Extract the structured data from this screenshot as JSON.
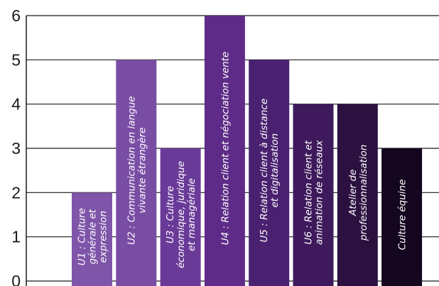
{
  "chart_data": {
    "type": "bar",
    "categories": [
      [
        "U1 : Culture",
        "générale et",
        "expression"
      ],
      [
        "U2 : Communication en langue",
        "vivante étrangère"
      ],
      [
        "U3 : Culture",
        "économique, juridique",
        "et managériale"
      ],
      [
        "U4 : Relation client et négociation vente"
      ],
      [
        "U5 : Relation client à distance",
        "et digitalisation"
      ],
      [
        "U6 : Relation client et",
        "animation de réseaux"
      ],
      [
        "Atelier de",
        "professionnalisation"
      ],
      [
        "Culture équine"
      ]
    ],
    "values": [
      2,
      5,
      3,
      6,
      5,
      4,
      4,
      3
    ],
    "bar_colors": [
      "#7e55a8",
      "#7a4da5",
      "#6a3a98",
      "#5e2c88",
      "#4a2170",
      "#3e1a5c",
      "#2c1040",
      "#14061e"
    ],
    "ylim": [
      0,
      6
    ],
    "yticks": [
      "0",
      "1",
      "2",
      "3",
      "4",
      "5",
      "6"
    ],
    "grid": true,
    "title": "",
    "xlabel": "",
    "ylabel": ""
  }
}
